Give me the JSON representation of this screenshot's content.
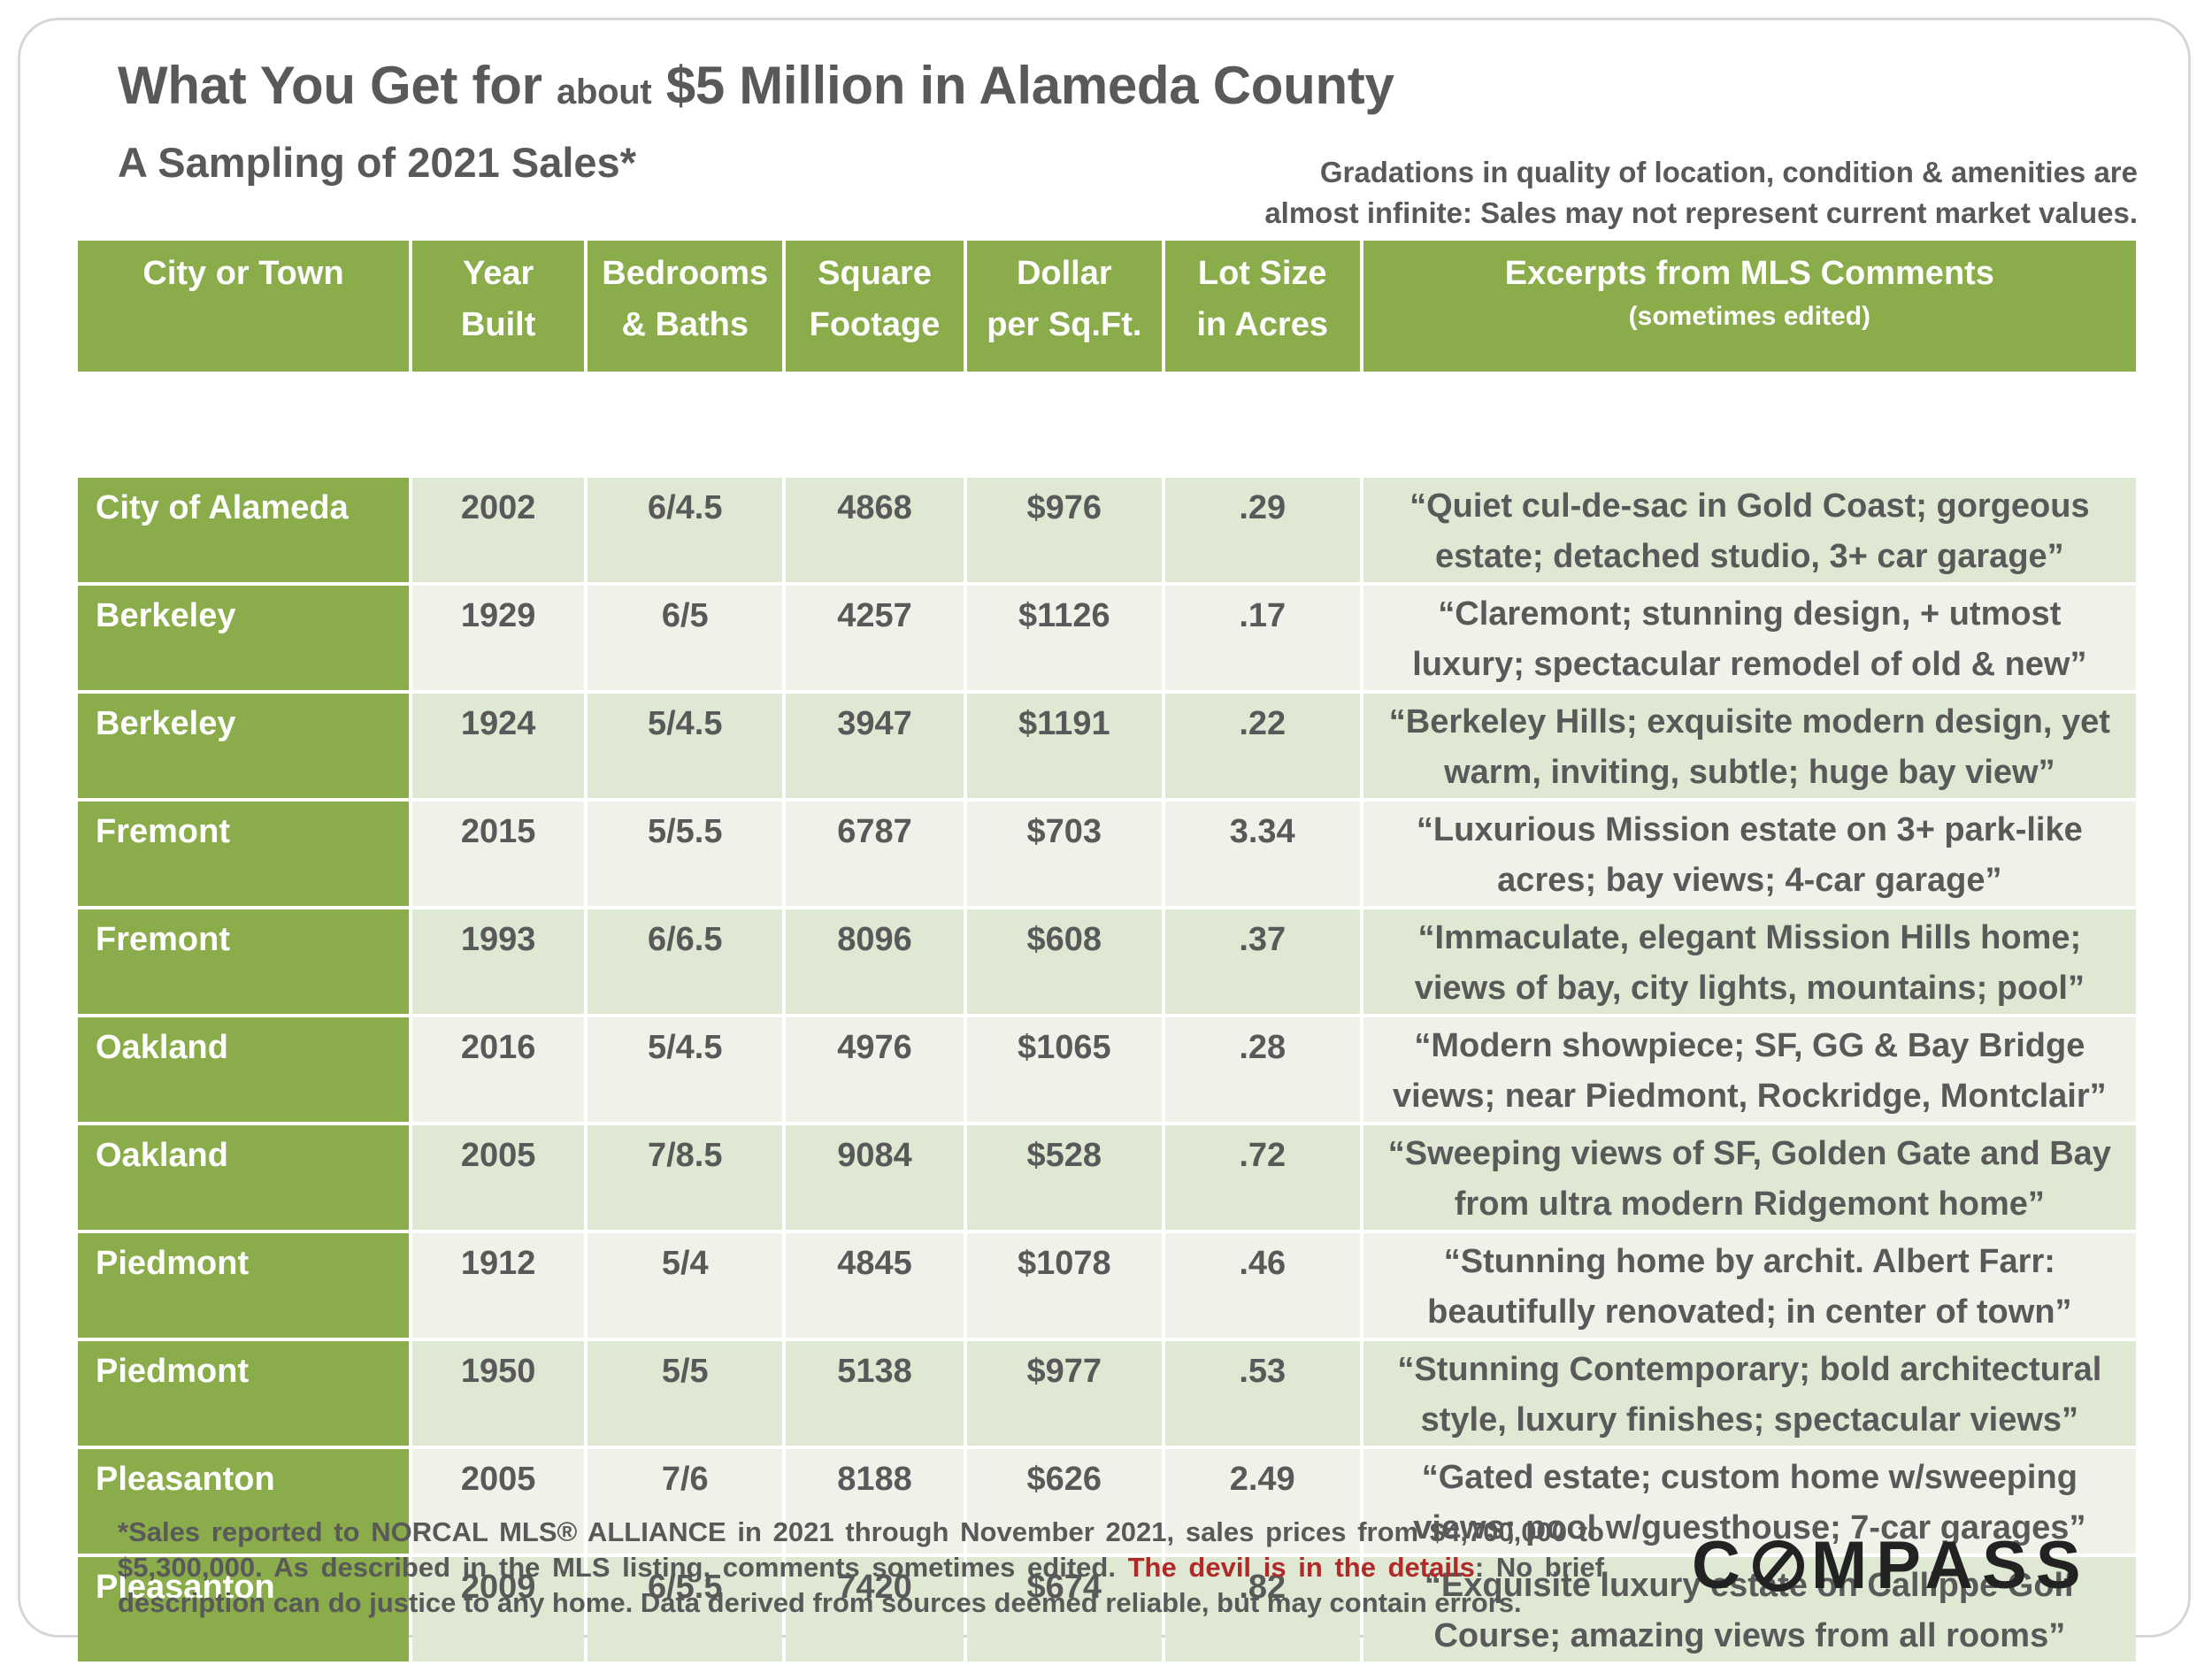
{
  "header": {
    "title_part1": "What You Get for ",
    "title_small": "about",
    "title_part2": " $5 Million in Alameda County",
    "subtitle": "A Sampling of 2021 Sales*",
    "disclaimer_line1": "Gradations in quality of location, condition & amenities are",
    "disclaimer_line2": "almost infinite: Sales may not represent current market values."
  },
  "chart_data": {
    "type": "table",
    "columns": [
      {
        "line1": "City or Town",
        "line2": ""
      },
      {
        "line1": "Year",
        "line2": "Built"
      },
      {
        "line1": "Bedrooms",
        "line2": "& Baths"
      },
      {
        "line1": "Square",
        "line2": "Footage"
      },
      {
        "line1": "Dollar",
        "line2": "per Sq.Ft."
      },
      {
        "line1": "Lot Size",
        "line2": "in Acres"
      },
      {
        "line1": "Excerpts from MLS Comments",
        "line2": "(sometimes edited)"
      }
    ],
    "rows": [
      {
        "city": "City of Alameda",
        "year": "2002",
        "beds_baths": "6/4.5",
        "sqft": "4868",
        "price_per_sqft": "$976",
        "lot_acres": ".29",
        "comment_line1": "“Quiet cul-de-sac in Gold Coast; gorgeous",
        "comment_line2": "estate; detached studio, 3+ car garage”"
      },
      {
        "city": "Berkeley",
        "year": "1929",
        "beds_baths": "6/5",
        "sqft": "4257",
        "price_per_sqft": "$1126",
        "lot_acres": ".17",
        "comment_line1": "“Claremont; stunning design, + utmost",
        "comment_line2": "luxury; spectacular remodel of old & new”"
      },
      {
        "city": "Berkeley",
        "year": "1924",
        "beds_baths": "5/4.5",
        "sqft": "3947",
        "price_per_sqft": "$1191",
        "lot_acres": ".22",
        "comment_line1": "“Berkeley Hills; exquisite modern design, yet",
        "comment_line2": "warm, inviting, subtle; huge bay view”"
      },
      {
        "city": "Fremont",
        "year": "2015",
        "beds_baths": "5/5.5",
        "sqft": "6787",
        "price_per_sqft": "$703",
        "lot_acres": "3.34",
        "comment_line1": "“Luxurious Mission estate on 3+ park-like",
        "comment_line2": "acres; bay views; 4-car garage”"
      },
      {
        "city": "Fremont",
        "year": "1993",
        "beds_baths": "6/6.5",
        "sqft": "8096",
        "price_per_sqft": "$608",
        "lot_acres": ".37",
        "comment_line1": "“Immaculate, elegant Mission Hills home;",
        "comment_line2": "views of bay, city lights, mountains; pool”"
      },
      {
        "city": "Oakland",
        "year": "2016",
        "beds_baths": "5/4.5",
        "sqft": "4976",
        "price_per_sqft": "$1065",
        "lot_acres": ".28",
        "comment_line1": "“Modern showpiece; SF, GG & Bay Bridge",
        "comment_line2": "views; near Piedmont, Rockridge, Montclair”"
      },
      {
        "city": "Oakland",
        "year": "2005",
        "beds_baths": "7/8.5",
        "sqft": "9084",
        "price_per_sqft": "$528",
        "lot_acres": ".72",
        "comment_line1": "“Sweeping views of SF, Golden Gate and Bay",
        "comment_line2": "from ultra modern Ridgemont home”"
      },
      {
        "city": "Piedmont",
        "year": "1912",
        "beds_baths": "5/4",
        "sqft": "4845",
        "price_per_sqft": "$1078",
        "lot_acres": ".46",
        "comment_line1": "“Stunning home by archit. Albert Farr:",
        "comment_line2": "beautifully renovated; in center of town”"
      },
      {
        "city": "Piedmont",
        "year": "1950",
        "beds_baths": "5/5",
        "sqft": "5138",
        "price_per_sqft": "$977",
        "lot_acres": ".53",
        "comment_line1": "“Stunning Contemporary; bold architectural",
        "comment_line2": "style, luxury finishes; spectacular views”"
      },
      {
        "city": "Pleasanton",
        "year": "2005",
        "beds_baths": "7/6",
        "sqft": "8188",
        "price_per_sqft": "$626",
        "lot_acres": "2.49",
        "comment_line1": "“Gated estate; custom home w/sweeping",
        "comment_line2": "views; pool w/guesthouse; 7-car garages”"
      },
      {
        "city": "Pleasanton",
        "year": "2009",
        "beds_baths": "6/5.5",
        "sqft": "7420",
        "price_per_sqft": "$674",
        "lot_acres": ".82",
        "comment_line1": "“Exquisite luxury estate on Callippe Golf",
        "comment_line2": "Course; amazing views from all rooms”"
      }
    ]
  },
  "footnote": {
    "part1": "*Sales reported to NORCAL MLS® ALLIANCE in 2021 through November 2021, sales prices from $4,700,000 to $5,300,000. As described in the MLS listing, comments sometimes edited. ",
    "highlight": "The devil is in the details",
    "part2": ": No brief description can do justice to any home. Data derived from sources deemed reliable, but may contain errors."
  },
  "logo": {
    "text_c": "C",
    "text_rest": "MPASS"
  },
  "colors": {
    "header_green": "#8aac4a",
    "row_odd": "#dfe8d3",
    "row_even": "#eef2e8",
    "text_gray": "#595959",
    "highlight_red": "#b02a2a"
  }
}
